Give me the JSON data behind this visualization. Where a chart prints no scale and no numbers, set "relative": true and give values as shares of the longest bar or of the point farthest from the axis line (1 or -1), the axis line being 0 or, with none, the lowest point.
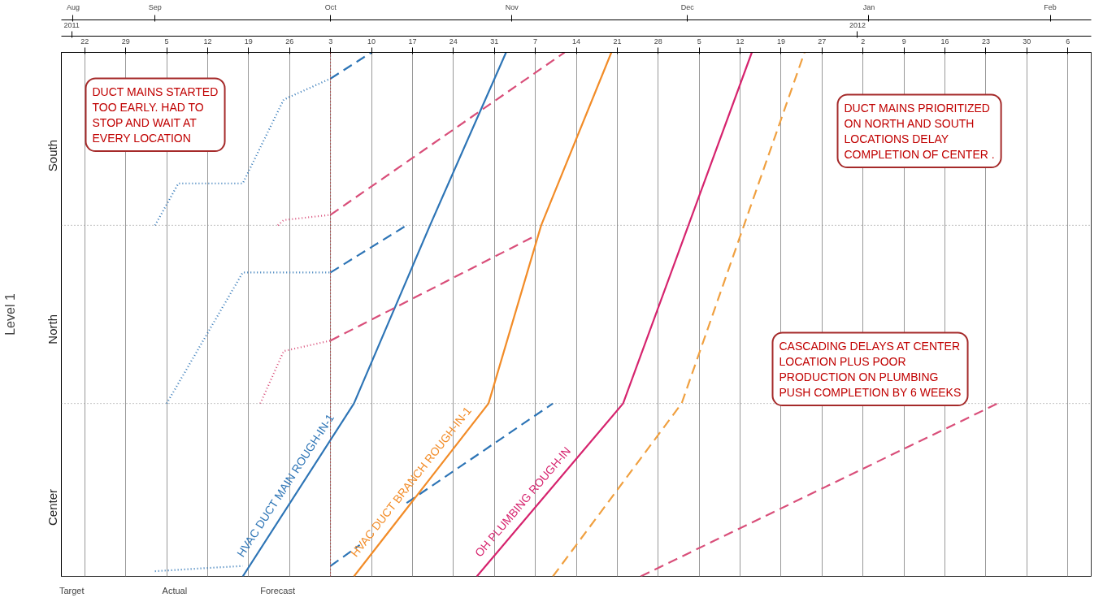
{
  "chart_data": {
    "type": "line",
    "relative": true,
    "ylabel": "Level 1",
    "xlim": [
      "2011-08-18",
      "2012-02-10"
    ],
    "xticks": [
      {
        "value": "2011-08-22",
        "label": "22"
      },
      {
        "value": "2011-08-29",
        "label": "29"
      },
      {
        "value": "2011-09-05",
        "label": "5"
      },
      {
        "value": "2011-09-12",
        "label": "12"
      },
      {
        "value": "2011-09-19",
        "label": "19"
      },
      {
        "value": "2011-09-26",
        "label": "26"
      },
      {
        "value": "2011-10-03",
        "label": "3"
      },
      {
        "value": "2011-10-10",
        "label": "10"
      },
      {
        "value": "2011-10-17",
        "label": "17"
      },
      {
        "value": "2011-10-24",
        "label": "24"
      },
      {
        "value": "2011-10-31",
        "label": "31"
      },
      {
        "value": "2011-11-07",
        "label": "7"
      },
      {
        "value": "2011-11-14",
        "label": "14"
      },
      {
        "value": "2011-11-21",
        "label": "21"
      },
      {
        "value": "2011-11-28",
        "label": "28"
      },
      {
        "value": "2011-12-05",
        "label": "5"
      },
      {
        "value": "2011-12-12",
        "label": "12"
      },
      {
        "value": "2011-12-19",
        "label": "19"
      },
      {
        "value": "2011-12-26",
        "label": "27"
      },
      {
        "value": "2012-01-02",
        "label": "2"
      },
      {
        "value": "2012-01-09",
        "label": "9"
      },
      {
        "value": "2012-01-16",
        "label": "16"
      },
      {
        "value": "2012-01-23",
        "label": "23"
      },
      {
        "value": "2012-01-30",
        "label": "30"
      },
      {
        "value": "2012-02-06",
        "label": "6"
      }
    ],
    "x2lim": [
      "2011-08-18",
      "2012-02-10"
    ],
    "x2ticks": [
      {
        "value": "2011-08-20",
        "label": "Aug"
      },
      {
        "value": "2011-09-03",
        "label": "Sep"
      },
      {
        "value": "2011-10-03",
        "label": "Oct"
      },
      {
        "value": "2011-11-03",
        "label": "Nov"
      },
      {
        "value": "2011-12-03",
        "label": "Dec"
      },
      {
        "value": "2012-01-03",
        "label": "Jan"
      },
      {
        "value": "2012-02-03",
        "label": "Feb"
      }
    ],
    "grid": "x",
    "ref_lines": [
      {
        "axis": "x",
        "value": "2011-10-03",
        "color": "#c00000",
        "line_style": "dotted"
      },
      {
        "axis": "y",
        "value": 0.33,
        "color": "#888888",
        "line_style": "dotted"
      },
      {
        "axis": "y",
        "value": 0.67,
        "color": "#888888",
        "line_style": "dotted"
      }
    ],
    "series": [
      {
        "name": "HVAC DUCT MAIN ROUGH-IN-1",
        "color": "#2e75b6",
        "line_style": "solid",
        "x": [
          "2011-09-18",
          "2011-10-07",
          "2011-10-20",
          "2011-11-02"
        ],
        "values": [
          0,
          0.33,
          0.67,
          1
        ]
      },
      {
        "color": "#2e75b6",
        "line_style": "dotted",
        "x": [
          "2011-09-03",
          "2011-09-18",
          null,
          "2011-09-05",
          "2011-09-18",
          "2011-10-03",
          null,
          "2011-09-03",
          "2011-09-07",
          "2011-09-18",
          "2011-09-25",
          "2011-10-03"
        ],
        "values": [
          0.01,
          0.02,
          null,
          0.33,
          0.58,
          0.58,
          null,
          0.67,
          0.75,
          0.75,
          0.91,
          0.95
        ]
      },
      {
        "color": "#2e75b6",
        "line_style": "dashed",
        "x": [
          "2011-10-03",
          "2011-10-08",
          null,
          "2011-10-16",
          "2011-11-10",
          null,
          "2011-10-03",
          "2011-10-16",
          null,
          "2011-10-03",
          "2011-10-10"
        ],
        "values": [
          0.02,
          0.06,
          null,
          0.14,
          0.33,
          null,
          0.58,
          0.67,
          null,
          0.95,
          1
        ]
      },
      {
        "name": "HVAC DUCT BRANCH ROUGH-IN-1",
        "color": "#f28c28",
        "line_style": "solid",
        "x": [
          "2011-10-07",
          "2011-10-30",
          "2011-11-08",
          "2011-11-20"
        ],
        "values": [
          0,
          0.33,
          0.67,
          1
        ]
      },
      {
        "color": "#f0a040",
        "line_style": "dashed",
        "x": [
          "2011-11-10",
          "2011-12-02",
          "2011-12-23"
        ],
        "values": [
          0,
          0.33,
          1
        ]
      },
      {
        "name": "OH PLUMBING ROUGH-IN",
        "color": "#d6246e",
        "line_style": "solid",
        "x": [
          "2011-10-28",
          "2011-11-22",
          "2011-12-14"
        ],
        "values": [
          0,
          0.33,
          1
        ]
      },
      {
        "color": "#d94f7a",
        "line_style": "dotted",
        "x": [
          "2011-09-21",
          "2011-09-25",
          "2011-10-03",
          null,
          "2011-09-24",
          "2011-09-25",
          "2011-10-03"
        ],
        "values": [
          0.33,
          0.43,
          0.45,
          null,
          0.67,
          0.68,
          0.69
        ]
      },
      {
        "color": "#d94f7a",
        "line_style": "dashed",
        "x": [
          "2011-11-25",
          "2012-01-25",
          null,
          "2011-10-03",
          "2011-11-07",
          null,
          "2011-10-03",
          "2011-11-12"
        ],
        "values": [
          0,
          0.33,
          null,
          0.45,
          0.65,
          null,
          0.69,
          1
        ]
      }
    ],
    "annotations": [
      "DUCT MAINS STARTED\nTOO EARLY. HAD TO\nSTOP AND WAIT AT\nEVERY LOCATION",
      "DUCT MAINS PRIORITIZED\nON NORTH AND SOUTH\nLOCATIONS DELAY\nCOMPLETION OF CENTER .",
      "CASCADING DELAYS AT CENTER\nLOCATION PLUS POOR\nPRODUCTION ON PLUMBING\nPUSH COMPLETION BY 6 WEEKS",
      "Target",
      "Actual",
      "Forecast",
      "South",
      "North",
      "Center",
      "2011",
      "2012"
    ]
  }
}
